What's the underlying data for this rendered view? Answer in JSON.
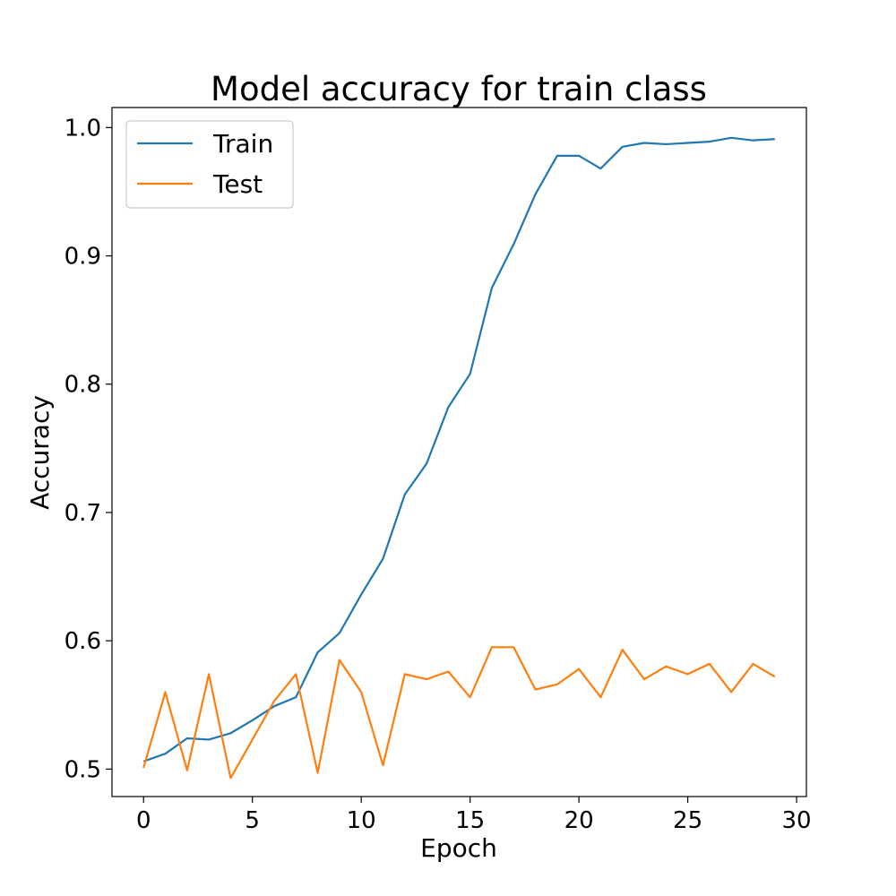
{
  "chart_data": {
    "type": "line",
    "title": "Model accuracy for train class",
    "xlabel": "Epoch",
    "ylabel": "Accuracy",
    "xlim": [
      -1.45,
      30.45
    ],
    "ylim": [
      0.4786,
      1.0156
    ],
    "xticks": [
      0,
      5,
      10,
      15,
      20,
      25,
      30
    ],
    "yticks": [
      0.5,
      0.6,
      0.7,
      0.8,
      0.9,
      1.0
    ],
    "xtick_labels": [
      "0",
      "5",
      "10",
      "15",
      "20",
      "25",
      "30"
    ],
    "ytick_labels": [
      "0.5",
      "0.6",
      "0.7",
      "0.8",
      "0.9",
      "1.0"
    ],
    "grid": false,
    "legend_position": "top-left",
    "x": [
      0,
      1,
      2,
      3,
      4,
      5,
      6,
      7,
      8,
      9,
      10,
      11,
      12,
      13,
      14,
      15,
      16,
      17,
      18,
      19,
      20,
      21,
      22,
      23,
      24,
      25,
      26,
      27,
      28,
      29
    ],
    "series": [
      {
        "name": "Train",
        "color": "#1f77b4",
        "values": [
          0.506,
          0.512,
          0.524,
          0.523,
          0.528,
          0.538,
          0.549,
          0.556,
          0.591,
          0.606,
          0.636,
          0.664,
          0.714,
          0.738,
          0.782,
          0.808,
          0.875,
          0.909,
          0.948,
          0.978,
          0.978,
          0.968,
          0.985,
          0.988,
          0.987,
          0.988,
          0.989,
          0.992,
          0.99,
          0.991
        ]
      },
      {
        "name": "Test",
        "color": "#ff7f0e",
        "values": [
          0.501,
          0.56,
          0.499,
          0.574,
          0.493,
          0.523,
          0.553,
          0.574,
          0.497,
          0.585,
          0.56,
          0.503,
          0.574,
          0.57,
          0.576,
          0.556,
          0.595,
          0.595,
          0.562,
          0.566,
          0.578,
          0.556,
          0.593,
          0.57,
          0.58,
          0.574,
          0.582,
          0.56,
          0.582,
          0.572
        ]
      }
    ]
  }
}
